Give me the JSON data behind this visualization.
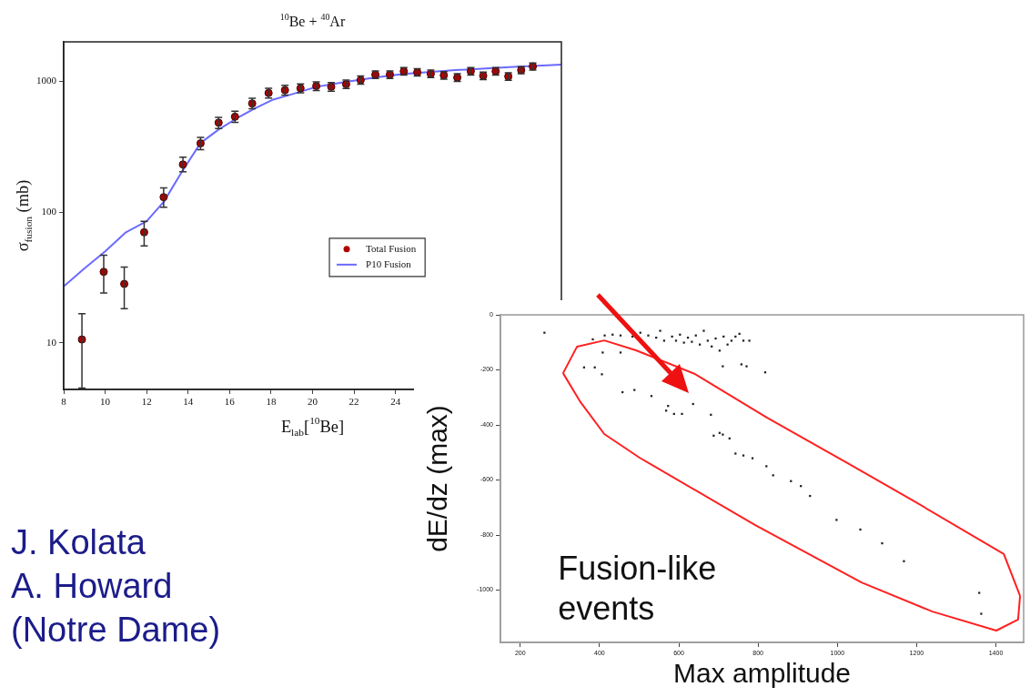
{
  "chart_data": [
    {
      "type": "scatter",
      "title": "$^{10}$Be + $^{40}$Ar",
      "xlabel": "E$_{lab}$[$^{10}$Be]",
      "ylabel": "σ$_{fusion}$ (mb)",
      "x": [
        8.88,
        9.93,
        10.92,
        11.88,
        12.82,
        13.75,
        14.6,
        15.47,
        16.26,
        17.09,
        17.88,
        18.67,
        19.42,
        20.18,
        20.9,
        21.62,
        22.32,
        23.03,
        23.73,
        24.4,
        25.05,
        25.7,
        26.33,
        26.98,
        27.63,
        28.23,
        28.83,
        29.44,
        30.06,
        30.62
      ],
      "series": [
        {
          "name": "Total Fusion",
          "color": "#b00000",
          "marker": "circle",
          "values": [
            10.6,
            34.9,
            28.2,
            70,
            130,
            231,
            335,
            482,
            535,
            676,
            813,
            855,
            884,
            919,
            907,
            949,
            1020,
            1124,
            1124,
            1191,
            1169,
            1139,
            1110,
            1067,
            1191,
            1102,
            1191,
            1088,
            1216,
            1297
          ],
          "errors": [
            [
              4.5,
              16.7
            ],
            [
              24,
              46.8
            ],
            [
              18.2,
              38
            ],
            [
              55,
              85
            ],
            [
              109,
              153
            ],
            [
              203,
              263
            ],
            [
              300,
              372
            ],
            [
              435,
              530
            ],
            [
              485,
              590
            ],
            [
              615,
              740
            ],
            [
              745,
              885
            ],
            [
              785,
              930
            ],
            [
              815,
              955
            ],
            [
              850,
              990
            ],
            [
              840,
              975
            ],
            [
              880,
              1020
            ],
            [
              950,
              1095
            ],
            [
              1050,
              1200
            ],
            [
              1050,
              1200
            ],
            [
              1115,
              1270
            ],
            [
              1095,
              1245
            ],
            [
              1065,
              1215
            ],
            [
              1035,
              1185
            ],
            [
              995,
              1140
            ],
            [
              1115,
              1270
            ],
            [
              1030,
              1175
            ],
            [
              1115,
              1270
            ],
            [
              1015,
              1160
            ],
            [
              1140,
              1295
            ],
            [
              1215,
              1380
            ]
          ]
        },
        {
          "name": "P10 Fusion",
          "type": "line",
          "color": "#6a6aff",
          "x": [
            8,
            9,
            10,
            11,
            12,
            12.83,
            13.7,
            14.6,
            15.47,
            16.35,
            17.2,
            18.1,
            19,
            20.2,
            21.6,
            23,
            24.4,
            26.9,
            29.5,
            32
          ],
          "values": [
            27,
            37,
            50,
            70,
            85,
            120,
            203,
            337,
            427,
            521,
            617,
            724,
            795,
            907,
            987,
            1067,
            1139,
            1216,
            1280,
            1340
          ]
        }
      ],
      "xlim": [
        8,
        32
      ],
      "xticks": [
        8,
        10,
        12,
        14,
        16,
        18,
        20,
        22,
        24
      ],
      "ylim": [
        4.4,
        2000
      ],
      "yticks": [
        10,
        100,
        1000
      ],
      "log": "y",
      "legend": "right",
      "grid": false,
      "annotations": [
        "J. Kolata",
        "A. Howard",
        "(Notre Dame)"
      ]
    },
    {
      "type": "scatter",
      "xlabel": "Max amplitude",
      "ylabel": "dE/dz (max)",
      "grid": false,
      "x": [
        261,
        383,
        413,
        433,
        453,
        483,
        503,
        523,
        543,
        553,
        563,
        583,
        593,
        603,
        613,
        623,
        633,
        643,
        653,
        663,
        673,
        683,
        693,
        703,
        713,
        723,
        733,
        743,
        753,
        763,
        778,
        408,
        453,
        361,
        388,
        406,
        711,
        758,
        771,
        818,
        458,
        488,
        531,
        573,
        568,
        588,
        608,
        636,
        681,
        688,
        703,
        711,
        728,
        743,
        763,
        786,
        821,
        838,
        883,
        908,
        931,
        998,
        1058,
        1113,
        1168,
        1358,
        1363
      ],
      "series": [
        {
          "color": "#222222",
          "marker": "square",
          "values": [
            -65,
            -89,
            -75,
            -72,
            -75,
            -79,
            -65,
            -75,
            -83,
            -58,
            -94,
            -79,
            -94,
            -72,
            -101,
            -83,
            -98,
            -75,
            -108,
            -58,
            -94,
            -115,
            -86,
            -130,
            -79,
            -108,
            -94,
            -79,
            -69,
            -94,
            -94,
            -137,
            -137,
            -191,
            -191,
            -216,
            -187,
            -180,
            -187,
            -209,
            -281,
            -273,
            -295,
            -331,
            -348,
            -360,
            -360,
            -324,
            -363,
            -439,
            -429,
            -435,
            -449,
            -504,
            -511,
            -521,
            -550,
            -583,
            -604,
            -622,
            -658,
            -745,
            -780,
            -830,
            -895,
            -1010,
            -1086
          ]
        },
        {
          "type": "line",
          "color": "#ff2020",
          "x": [
            308,
            343,
            412,
            492,
            641,
            823,
            1002,
            1190,
            1420,
            1461
          ],
          "values": [
            -212,
            -116,
            -93,
            -129,
            -215,
            -374,
            -519,
            -674,
            -869,
            -1021
          ]
        },
        {
          "type": "line",
          "color": "#ff2020",
          "x": [
            308,
            352,
            412,
            501,
            793,
            1061,
            1240,
            1401,
            1456,
            1461
          ],
          "values": [
            -212,
            -317,
            -433,
            -519,
            -764,
            -972,
            -1078,
            -1147,
            -1107,
            -1021
          ]
        }
      ],
      "xlim": [
        150,
        1470
      ],
      "xticks": [
        200,
        400,
        600,
        800,
        1000,
        1200,
        1400
      ],
      "ylim": [
        -1190,
        0
      ],
      "yticks": [
        0,
        -200,
        -400,
        -600,
        -800,
        -1000
      ],
      "annotations": [
        "Fusion-like events"
      ]
    }
  ]
}
